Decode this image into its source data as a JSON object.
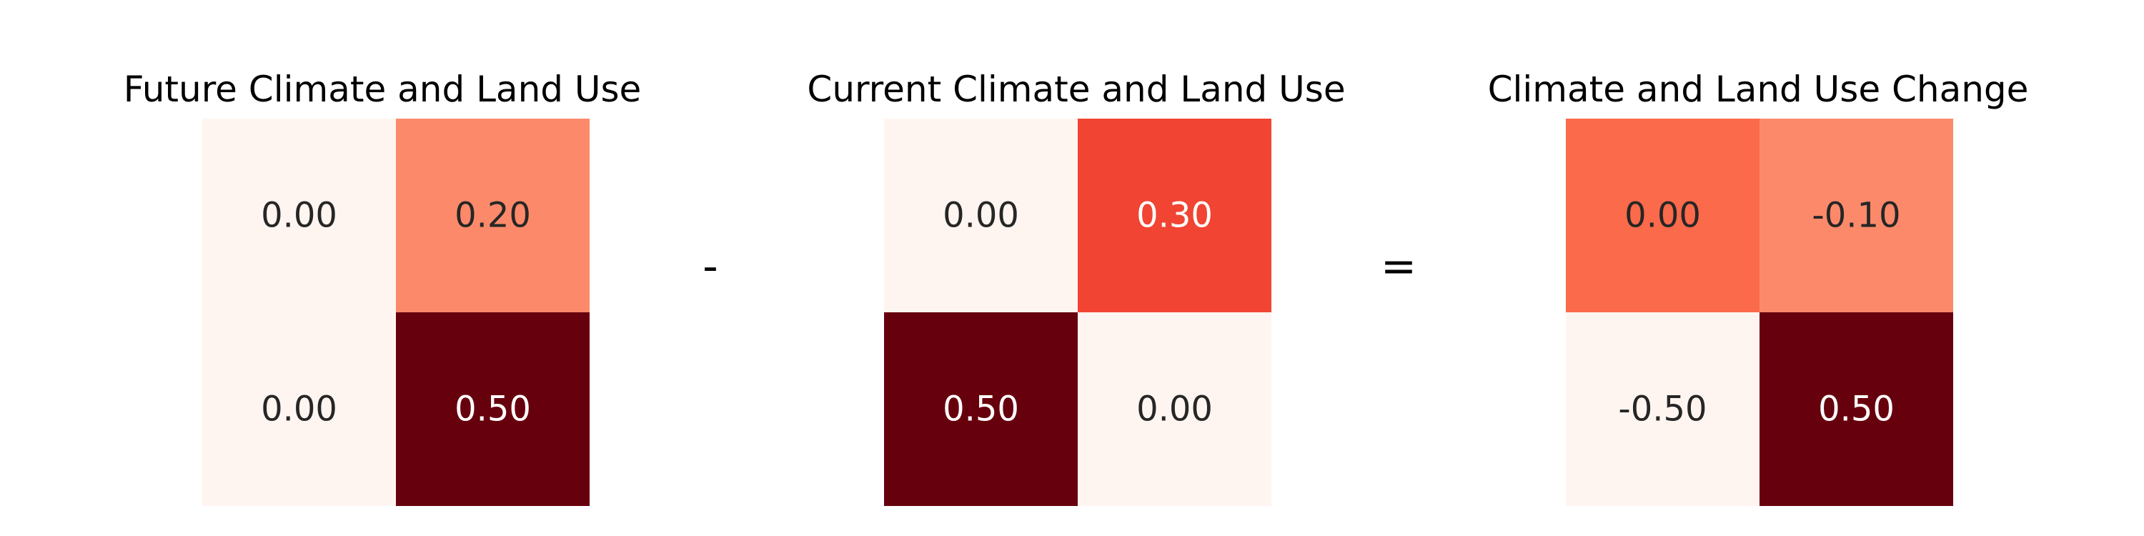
{
  "chart_data": [
    {
      "type": "heatmap",
      "title": "Future Climate and Land Use",
      "values": [
        [
          0.0,
          0.2
        ],
        [
          0.0,
          0.5
        ]
      ],
      "labels": [
        [
          "0.00",
          "0.20"
        ],
        [
          "0.00",
          "0.50"
        ]
      ],
      "colormap": "Reds",
      "vmin": 0.0,
      "vmax": 0.5,
      "grid": false,
      "xlabel": "",
      "ylabel": ""
    },
    {
      "type": "heatmap",
      "title": "Current Climate and Land Use",
      "values": [
        [
          0.0,
          0.3
        ],
        [
          0.5,
          0.0
        ]
      ],
      "labels": [
        [
          "0.00",
          "0.30"
        ],
        [
          "0.50",
          "0.00"
        ]
      ],
      "colormap": "Reds",
      "vmin": 0.0,
      "vmax": 0.5,
      "grid": false,
      "xlabel": "",
      "ylabel": ""
    },
    {
      "type": "heatmap",
      "title": "Climate and Land Use Change",
      "values": [
        [
          0.0,
          -0.1
        ],
        [
          -0.5,
          0.5
        ]
      ],
      "labels": [
        [
          "0.00",
          "-0.10"
        ],
        [
          "-0.50",
          "0.50"
        ]
      ],
      "colormap": "Reds",
      "vmin": -0.5,
      "vmax": 0.5,
      "grid": false,
      "xlabel": "",
      "ylabel": ""
    }
  ],
  "operators": {
    "minus": "-",
    "equals": "="
  },
  "colors": {
    "cell_lightest": "#fff5f0",
    "cell_darkest": "#67000d",
    "text_dark": "#262626",
    "text_light": "#ffffff"
  }
}
